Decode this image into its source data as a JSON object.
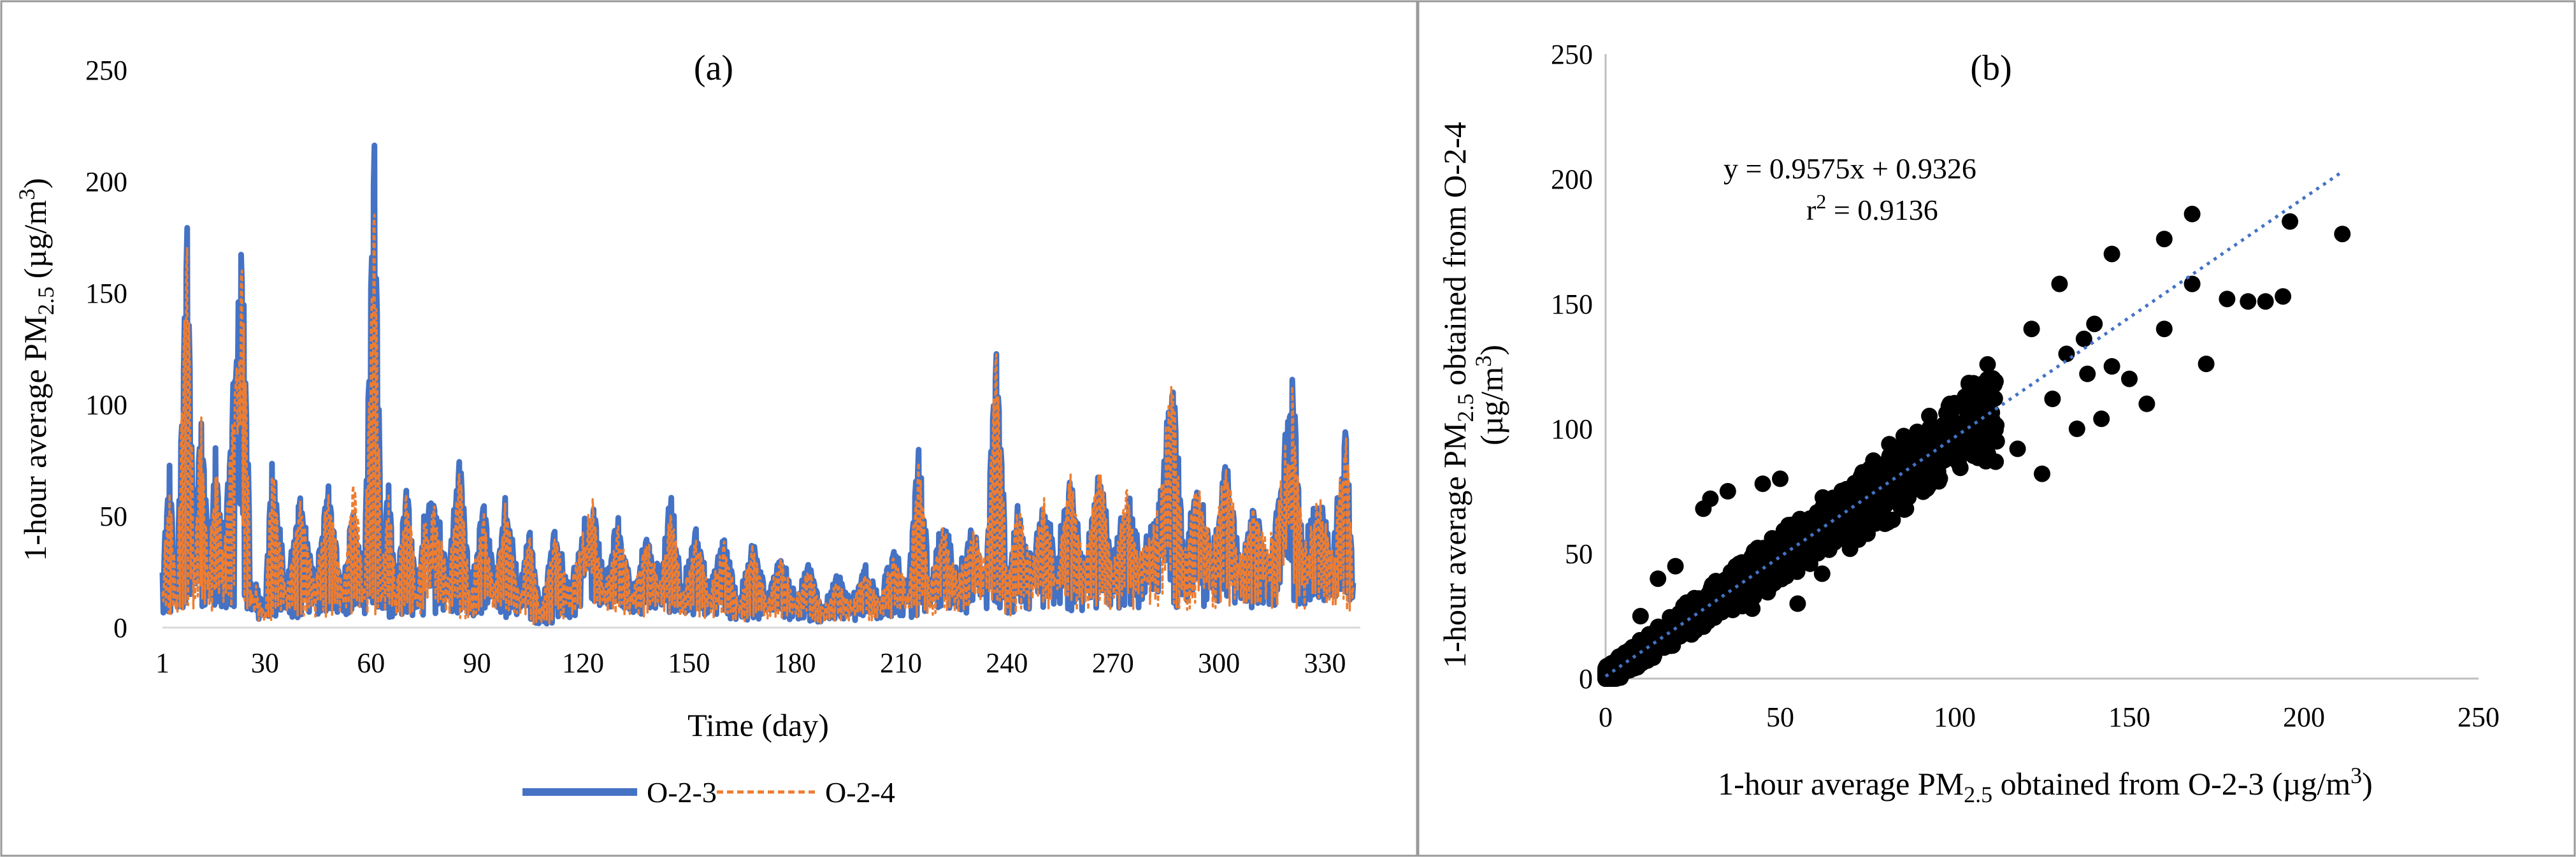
{
  "chart_data": [
    {
      "type": "line",
      "panel_label": "(a)",
      "xlabel": "Time (day)",
      "ylabel_parts": [
        "1-hour average PM",
        "2.5",
        " (µg/m",
        "3",
        ")"
      ],
      "x_ticks": [
        "1",
        "30",
        "60",
        "90",
        "120",
        "150",
        "180",
        "210",
        "240",
        "270",
        "300",
        "330"
      ],
      "y_ticks": [
        "0",
        "50",
        "100",
        "150",
        "200",
        "250"
      ],
      "xlim": [
        1,
        340
      ],
      "ylim": [
        0,
        250
      ],
      "legend_position": "bottom",
      "series": [
        {
          "name": "O-2-3",
          "color": "#4472C4",
          "style": "solid",
          "peaks": [
            [
              1,
              20
            ],
            [
              3,
              68
            ],
            [
              5,
              18
            ],
            [
              8,
              172
            ],
            [
              10,
              30
            ],
            [
              12,
              95
            ],
            [
              14,
              25
            ],
            [
              16,
              72
            ],
            [
              18,
              30
            ],
            [
              22,
              125
            ],
            [
              24,
              147
            ],
            [
              26,
              20
            ],
            [
              28,
              15
            ],
            [
              30,
              8
            ],
            [
              32,
              72
            ],
            [
              36,
              15
            ],
            [
              40,
              58
            ],
            [
              44,
              18
            ],
            [
              48,
              62
            ],
            [
              52,
              15
            ],
            [
              55,
              52
            ],
            [
              58,
              20
            ],
            [
              61,
              210
            ],
            [
              63,
              22
            ],
            [
              65,
              68
            ],
            [
              67,
              15
            ],
            [
              70,
              62
            ],
            [
              73,
              18
            ],
            [
              75,
              40
            ],
            [
              78,
              55
            ],
            [
              82,
              20
            ],
            [
              85,
              75
            ],
            [
              88,
              15
            ],
            [
              92,
              52
            ],
            [
              95,
              20
            ],
            [
              98,
              57
            ],
            [
              102,
              15
            ],
            [
              105,
              42
            ],
            [
              108,
              5
            ],
            [
              112,
              43
            ],
            [
              116,
              15
            ],
            [
              120,
              38
            ],
            [
              123,
              52
            ],
            [
              126,
              18
            ],
            [
              130,
              45
            ],
            [
              134,
              15
            ],
            [
              138,
              38
            ],
            [
              142,
              20
            ],
            [
              145,
              57
            ],
            [
              148,
              15
            ],
            [
              152,
              40
            ],
            [
              156,
              15
            ],
            [
              160,
              38
            ],
            [
              164,
              10
            ],
            [
              168,
              36
            ],
            [
              172,
              12
            ],
            [
              176,
              30
            ],
            [
              180,
              12
            ],
            [
              184,
              26
            ],
            [
              188,
              8
            ],
            [
              192,
              22
            ],
            [
              196,
              10
            ],
            [
              200,
              25
            ],
            [
              204,
              12
            ],
            [
              208,
              33
            ],
            [
              212,
              15
            ],
            [
              215,
              77
            ],
            [
              218,
              20
            ],
            [
              222,
              45
            ],
            [
              226,
              20
            ],
            [
              230,
              42
            ],
            [
              234,
              25
            ],
            [
              237,
              126
            ],
            [
              240,
              20
            ],
            [
              243,
              48
            ],
            [
              247,
              25
            ],
            [
              250,
              52
            ],
            [
              254,
              28
            ],
            [
              258,
              60
            ],
            [
              262,
              25
            ],
            [
              266,
              65
            ],
            [
              270,
              25
            ],
            [
              274,
              55
            ],
            [
              278,
              28
            ],
            [
              283,
              45
            ],
            [
              287,
              111
            ],
            [
              290,
              28
            ],
            [
              294,
              60
            ],
            [
              298,
              30
            ],
            [
              302,
              67
            ],
            [
              306,
              28
            ],
            [
              310,
              48
            ],
            [
              314,
              30
            ],
            [
              318,
              60
            ],
            [
              321,
              98
            ],
            [
              324,
              30
            ],
            [
              328,
              52
            ],
            [
              332,
              30
            ],
            [
              336,
              82
            ],
            [
              338,
              20
            ]
          ]
        },
        {
          "name": "O-2-4",
          "color": "#ED7D31",
          "style": "dashed",
          "peaks": [
            [
              1,
              18
            ],
            [
              3,
              60
            ],
            [
              5,
              16
            ],
            [
              8,
              175
            ],
            [
              10,
              28
            ],
            [
              12,
              90
            ],
            [
              14,
              22
            ],
            [
              16,
              70
            ],
            [
              18,
              28
            ],
            [
              22,
              118
            ],
            [
              24,
              140
            ],
            [
              26,
              18
            ],
            [
              28,
              14
            ],
            [
              30,
              7
            ],
            [
              32,
              70
            ],
            [
              36,
              14
            ],
            [
              40,
              55
            ],
            [
              44,
              16
            ],
            [
              48,
              60
            ],
            [
              52,
              14
            ],
            [
              55,
              65
            ],
            [
              58,
              18
            ],
            [
              61,
              190
            ],
            [
              63,
              20
            ],
            [
              65,
              60
            ],
            [
              67,
              14
            ],
            [
              70,
              58
            ],
            [
              73,
              16
            ],
            [
              75,
              38
            ],
            [
              78,
              50
            ],
            [
              82,
              18
            ],
            [
              85,
              70
            ],
            [
              88,
              14
            ],
            [
              92,
              48
            ],
            [
              95,
              18
            ],
            [
              98,
              52
            ],
            [
              102,
              14
            ],
            [
              105,
              40
            ],
            [
              108,
              5
            ],
            [
              112,
              40
            ],
            [
              116,
              14
            ],
            [
              120,
              36
            ],
            [
              123,
              48
            ],
            [
              126,
              16
            ],
            [
              130,
              42
            ],
            [
              134,
              14
            ],
            [
              138,
              36
            ],
            [
              142,
              18
            ],
            [
              145,
              50
            ],
            [
              148,
              14
            ],
            [
              152,
              38
            ],
            [
              156,
              14
            ],
            [
              160,
              36
            ],
            [
              164,
              9
            ],
            [
              168,
              34
            ],
            [
              172,
              11
            ],
            [
              176,
              28
            ],
            [
              180,
              11
            ],
            [
              184,
              24
            ],
            [
              188,
              7
            ],
            [
              192,
              20
            ],
            [
              196,
              9
            ],
            [
              200,
              23
            ],
            [
              204,
              11
            ],
            [
              208,
              30
            ],
            [
              212,
              14
            ],
            [
              215,
              70
            ],
            [
              218,
              18
            ],
            [
              222,
              42
            ],
            [
              226,
              18
            ],
            [
              230,
              40
            ],
            [
              234,
              23
            ],
            [
              237,
              120
            ],
            [
              240,
              18
            ],
            [
              243,
              50
            ],
            [
              247,
              23
            ],
            [
              250,
              55
            ],
            [
              254,
              26
            ],
            [
              258,
              65
            ],
            [
              262,
              23
            ],
            [
              266,
              70
            ],
            [
              270,
              23
            ],
            [
              274,
              58
            ],
            [
              278,
              26
            ],
            [
              283,
              48
            ],
            [
              287,
              108
            ],
            [
              290,
              26
            ],
            [
              294,
              62
            ],
            [
              298,
              28
            ],
            [
              302,
              70
            ],
            [
              306,
              26
            ],
            [
              310,
              50
            ],
            [
              314,
              28
            ],
            [
              318,
              62
            ],
            [
              321,
              95
            ],
            [
              324,
              28
            ],
            [
              328,
              55
            ],
            [
              332,
              28
            ],
            [
              336,
              86
            ],
            [
              338,
              18
            ]
          ]
        }
      ]
    },
    {
      "type": "scatter",
      "panel_label": "(b)",
      "xlabel_parts": [
        "1-hour average PM",
        "2.5",
        " obtained from O-2-3 (µg/m",
        "3",
        ")"
      ],
      "ylabel_line1_parts": [
        "1-hour average PM",
        "2.5",
        " obtained from O-2-4"
      ],
      "ylabel_line2_parts": [
        "(µg/m",
        "3",
        ")"
      ],
      "x_ticks": [
        "0",
        "50",
        "100",
        "150",
        "200",
        "250"
      ],
      "y_ticks": [
        "0",
        "50",
        "100",
        "150",
        "200",
        "250"
      ],
      "xlim": [
        0,
        250
      ],
      "ylim": [
        0,
        250
      ],
      "equation": "y = 0.9575x + 0.9326",
      "r2_parts": [
        "r",
        "2",
        " = 0.9136"
      ],
      "trendline": {
        "slope": 0.9575,
        "intercept": 0.9326,
        "x_range": [
          0,
          211
        ],
        "color": "#4472C4",
        "style": "dotted"
      },
      "point_color": "#000000",
      "outliers": [
        [
          168,
          186
        ],
        [
          196,
          183
        ],
        [
          211,
          178
        ],
        [
          160,
          176
        ],
        [
          178,
          152
        ],
        [
          184,
          151
        ],
        [
          189,
          151
        ],
        [
          194,
          153
        ],
        [
          168,
          158
        ],
        [
          172,
          126
        ],
        [
          145,
          170
        ],
        [
          130,
          158
        ],
        [
          137,
          136
        ],
        [
          140,
          142
        ],
        [
          150,
          120
        ],
        [
          155,
          110
        ],
        [
          142,
          104
        ],
        [
          125,
          82
        ],
        [
          118,
          92
        ],
        [
          112,
          95
        ],
        [
          108,
          118
        ],
        [
          100,
          100
        ],
        [
          96,
          88
        ],
        [
          92,
          76
        ],
        [
          86,
          68
        ],
        [
          80,
          62
        ],
        [
          75,
          58
        ],
        [
          70,
          52
        ],
        [
          62,
          42
        ],
        [
          55,
          30
        ],
        [
          42,
          28
        ],
        [
          30,
          72
        ],
        [
          28,
          68
        ],
        [
          35,
          75
        ],
        [
          45,
          78
        ],
        [
          50,
          80
        ],
        [
          20,
          45
        ],
        [
          15,
          40
        ],
        [
          10,
          25
        ],
        [
          138,
          122
        ],
        [
          145,
          125
        ],
        [
          132,
          130
        ],
        [
          128,
          112
        ],
        [
          160,
          140
        ],
        [
          122,
          140
        ],
        [
          135,
          100
        ]
      ]
    }
  ]
}
